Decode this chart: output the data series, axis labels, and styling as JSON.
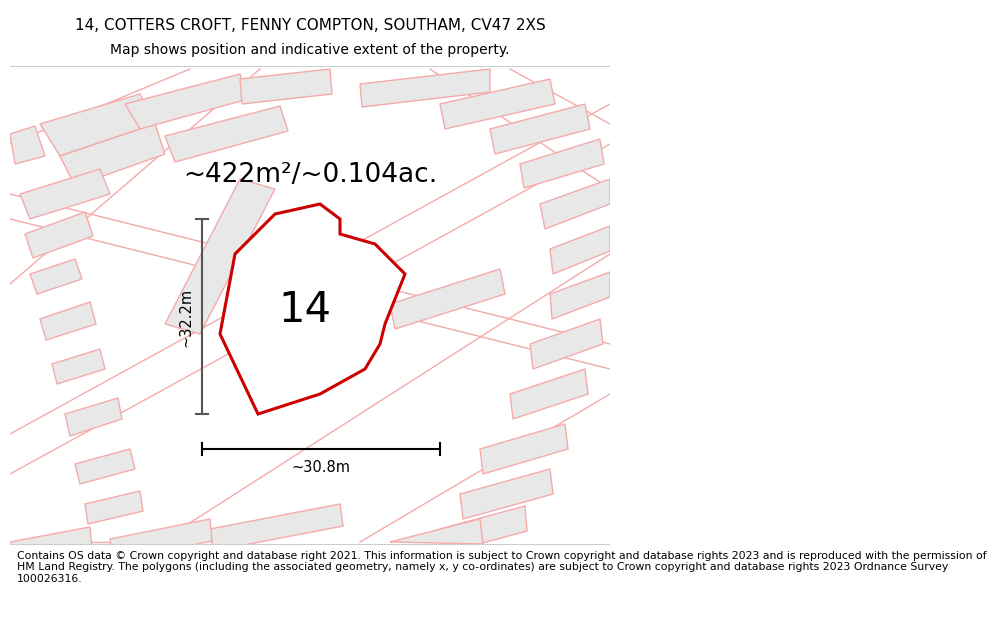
{
  "title": "14, COTTERS CROFT, FENNY COMPTON, SOUTHAM, CV47 2XS",
  "subtitle": "Map shows position and indicative extent of the property.",
  "area_label": "~422m²/~0.104ac.",
  "dim_horizontal": "~30.8m",
  "dim_vertical": "~32.2m",
  "property_number": "14",
  "footer_lines": [
    "Contains OS data © Crown copyright and database right 2021. This information is subject to Crown copyright and database rights 2023 and is reproduced with the permission of",
    "HM Land Registry. The polygons (including the associated geometry, namely x, y co-ordinates) are subject to Crown copyright and database rights 2023 Ordnance Survey",
    "100026316."
  ],
  "bg_color": "#ffffff",
  "map_bg": "#ffffff",
  "building_fill": "#e8e8e8",
  "building_edge": "#f5aaaa",
  "road_line": "#f5aaaa",
  "property_fill": "#ffffff",
  "property_edge": "#cc0000",
  "dim_line_color": "#555555",
  "title_fontsize": 11,
  "subtitle_fontsize": 10,
  "area_fontsize": 19,
  "number_fontsize": 30,
  "dim_fontsize": 10.5,
  "footer_fontsize": 7.8
}
